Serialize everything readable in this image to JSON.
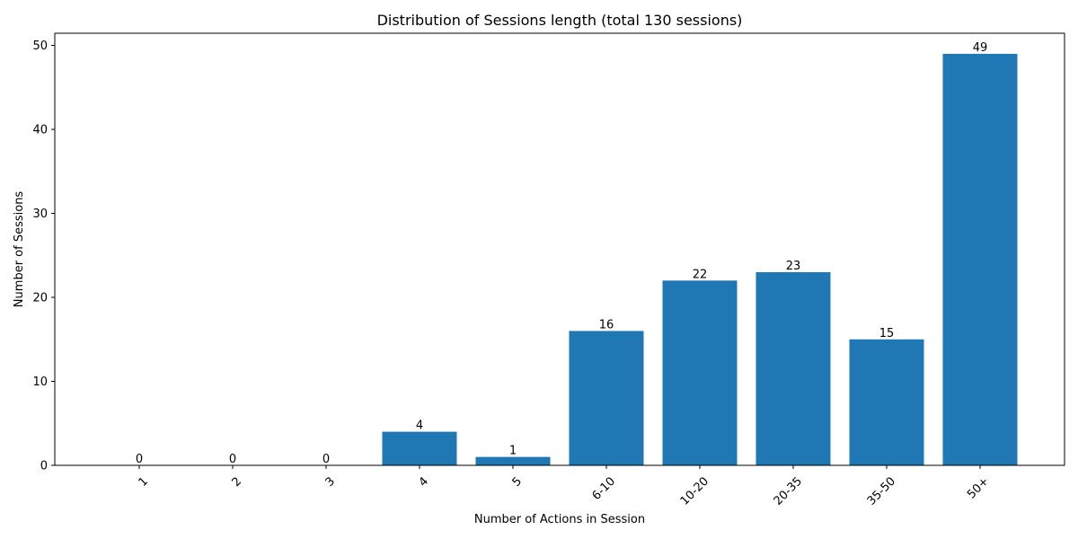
{
  "chart_data": {
    "type": "bar",
    "title": "Distribution of Sessions length (total 130 sessions)",
    "xlabel": "Number of Actions in Session",
    "ylabel": "Number of Sessions",
    "categories": [
      "1",
      "2",
      "3",
      "4",
      "5",
      "6-10",
      "10-20",
      "20-35",
      "35-50",
      "50+"
    ],
    "values": [
      0,
      0,
      0,
      4,
      1,
      16,
      22,
      23,
      15,
      49
    ],
    "ylim": [
      0,
      51.45
    ],
    "yticks": [
      0,
      10,
      20,
      30,
      40,
      50
    ],
    "bar_color": "#1f77b4",
    "grid": false,
    "legend": "none",
    "xtick_rotation": 45
  }
}
